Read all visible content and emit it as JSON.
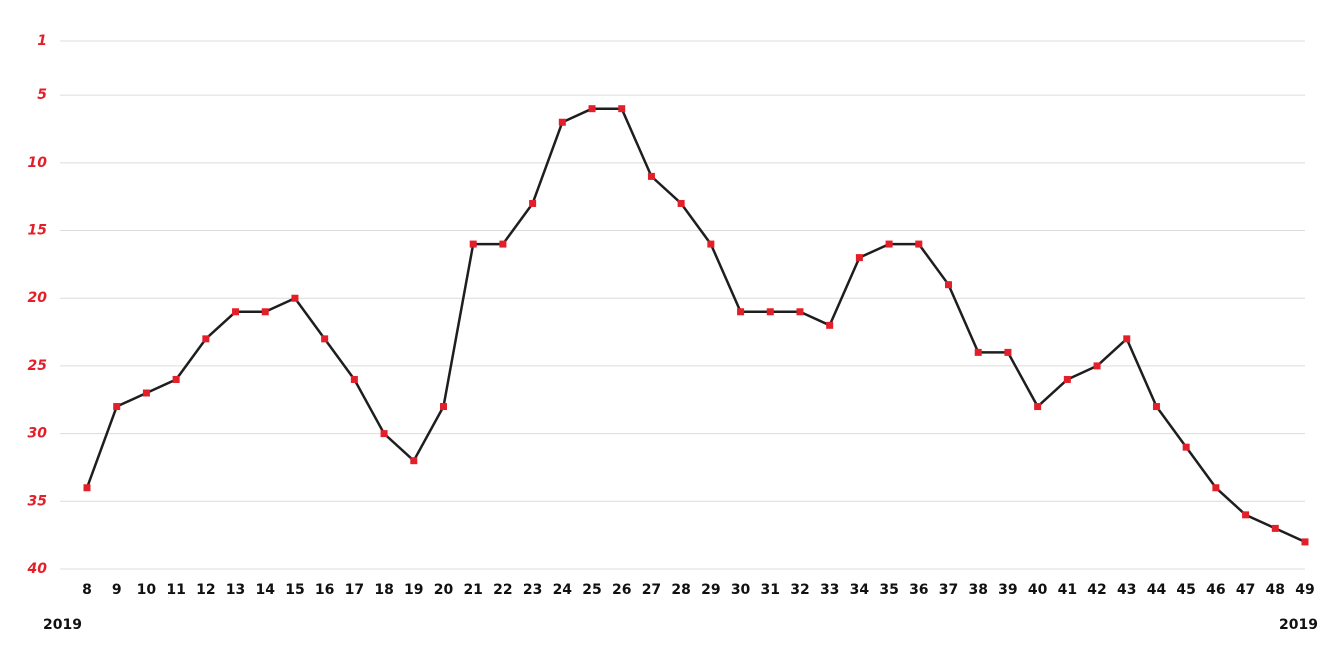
{
  "chart_data": {
    "type": "line",
    "categories": [
      "8",
      "9",
      "10",
      "11",
      "12",
      "13",
      "14",
      "15",
      "16",
      "17",
      "18",
      "19",
      "20",
      "21",
      "22",
      "23",
      "24",
      "25",
      "26",
      "27",
      "28",
      "29",
      "30",
      "31",
      "32",
      "33",
      "34",
      "35",
      "36",
      "37",
      "38",
      "39",
      "40",
      "41",
      "42",
      "43",
      "44",
      "45",
      "46",
      "47",
      "48",
      "49"
    ],
    "series": [
      {
        "color": "#1e1e1e",
        "marker_color": "#e3202a",
        "values": [
          34,
          28,
          27,
          26,
          23,
          21,
          21,
          20,
          23,
          26,
          30,
          32,
          28,
          16,
          16,
          13,
          7,
          6,
          6,
          11,
          13,
          16,
          21,
          21,
          21,
          22,
          17,
          16,
          16,
          19,
          24,
          24,
          28,
          26,
          25,
          23,
          28,
          31,
          34,
          36,
          37,
          38
        ]
      }
    ],
    "ylim": [
      1,
      40
    ],
    "yticks": [
      1,
      5,
      10,
      15,
      20,
      25,
      30,
      35,
      40
    ],
    "y_inverted": true,
    "grid": true,
    "annotations": [
      "2019",
      "2019"
    ]
  }
}
